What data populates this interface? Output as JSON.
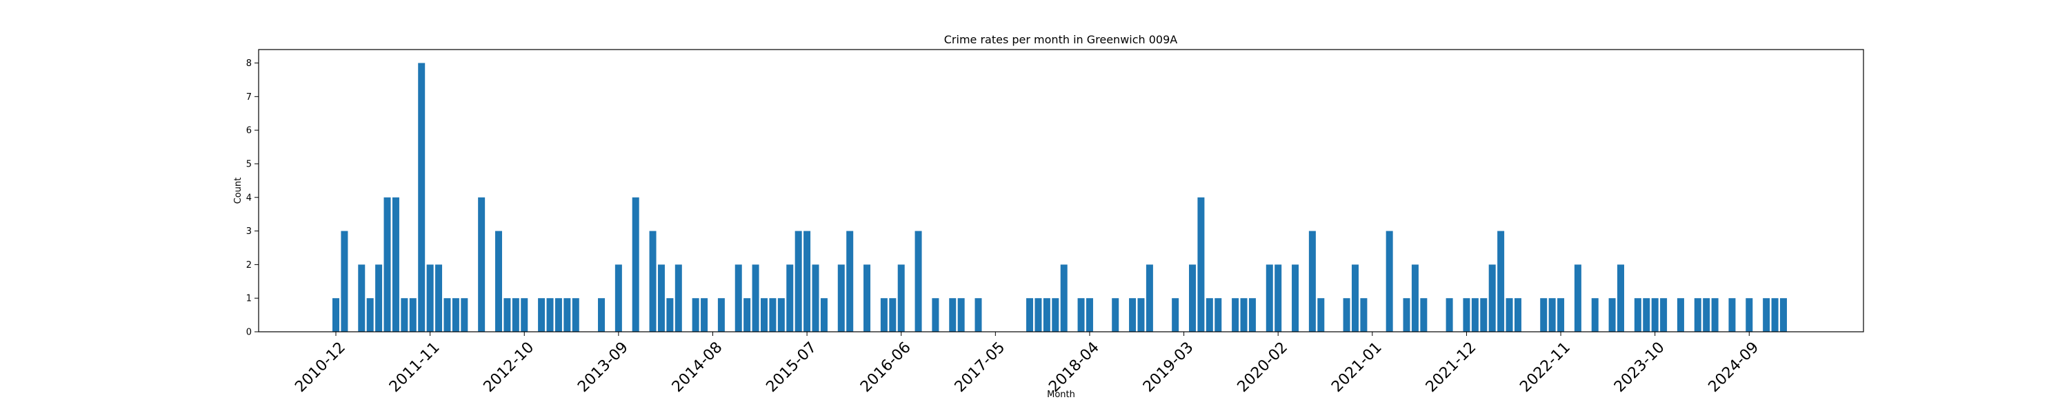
{
  "chart_data": {
    "type": "bar",
    "title": "Crime rates per month in Greenwich 009A",
    "xlabel": "Month",
    "ylabel": "Count",
    "ylim": [
      0,
      8.4
    ],
    "yticks": [
      0,
      1,
      2,
      3,
      4,
      5,
      6,
      7,
      8
    ],
    "xticks": [
      "2010-12",
      "2011-11",
      "2012-10",
      "2013-09",
      "2014-08",
      "2015-07",
      "2016-06",
      "2017-05",
      "2018-04",
      "2019-03",
      "2020-02",
      "2021-01",
      "2021-12",
      "2022-11",
      "2023-10",
      "2024-09"
    ],
    "grid": false,
    "bar_color": "#1f77b4",
    "categories": [
      "2010-12",
      "2011-01",
      "2011-03",
      "2011-04",
      "2011-05",
      "2011-06",
      "2011-07",
      "2011-08",
      "2011-09",
      "2011-10",
      "2011-11",
      "2011-12",
      "2012-01",
      "2012-02",
      "2012-03",
      "2012-05",
      "2012-07",
      "2012-08",
      "2012-09",
      "2012-10",
      "2012-12",
      "2013-01",
      "2013-02",
      "2013-03",
      "2013-04",
      "2013-07",
      "2013-09",
      "2013-11",
      "2014-01",
      "2014-02",
      "2014-03",
      "2014-04",
      "2014-06",
      "2014-07",
      "2014-09",
      "2014-11",
      "2014-12",
      "2015-01",
      "2015-02",
      "2015-03",
      "2015-04",
      "2015-05",
      "2015-06",
      "2015-07",
      "2015-08",
      "2015-09",
      "2015-11",
      "2015-12",
      "2016-02",
      "2016-04",
      "2016-05",
      "2016-06",
      "2016-08",
      "2016-10",
      "2016-12",
      "2017-01",
      "2017-03",
      "2017-09",
      "2017-10",
      "2017-11",
      "2017-12",
      "2018-01",
      "2018-03",
      "2018-04",
      "2018-07",
      "2018-09",
      "2018-10",
      "2018-11",
      "2019-02",
      "2019-04",
      "2019-05",
      "2019-06",
      "2019-07",
      "2019-09",
      "2019-10",
      "2019-11",
      "2020-01",
      "2020-02",
      "2020-04",
      "2020-06",
      "2020-07",
      "2020-10",
      "2020-11",
      "2020-12",
      "2021-03",
      "2021-05",
      "2021-06",
      "2021-07",
      "2021-10",
      "2021-12",
      "2022-01",
      "2022-02",
      "2022-03",
      "2022-04",
      "2022-05",
      "2022-06",
      "2022-09",
      "2022-10",
      "2022-11",
      "2023-01",
      "2023-03",
      "2023-05",
      "2023-06",
      "2023-08",
      "2023-09",
      "2023-10",
      "2023-11",
      "2024-01",
      "2024-03",
      "2024-04",
      "2024-05",
      "2024-07",
      "2024-09",
      "2024-11",
      "2024-12",
      "2025-01"
    ],
    "values": [
      1,
      3,
      2,
      1,
      2,
      4,
      4,
      1,
      1,
      8,
      2,
      2,
      1,
      1,
      1,
      4,
      3,
      1,
      1,
      1,
      1,
      1,
      1,
      1,
      1,
      1,
      2,
      4,
      3,
      2,
      1,
      2,
      1,
      1,
      1,
      2,
      1,
      2,
      1,
      1,
      1,
      2,
      3,
      3,
      2,
      1,
      2,
      3,
      2,
      1,
      1,
      2,
      3,
      1,
      1,
      1,
      1,
      1,
      1,
      1,
      1,
      2,
      1,
      1,
      1,
      1,
      1,
      2,
      1,
      2,
      4,
      1,
      1,
      1,
      1,
      1,
      2,
      2,
      2,
      3,
      1,
      1,
      2,
      1,
      3,
      1,
      2,
      1,
      1,
      1,
      1,
      1,
      2,
      3,
      1,
      1,
      1,
      1,
      1,
      2,
      1,
      1,
      2,
      1,
      1,
      1,
      1,
      1,
      1,
      1,
      1,
      1,
      1,
      1,
      1,
      1
    ]
  }
}
